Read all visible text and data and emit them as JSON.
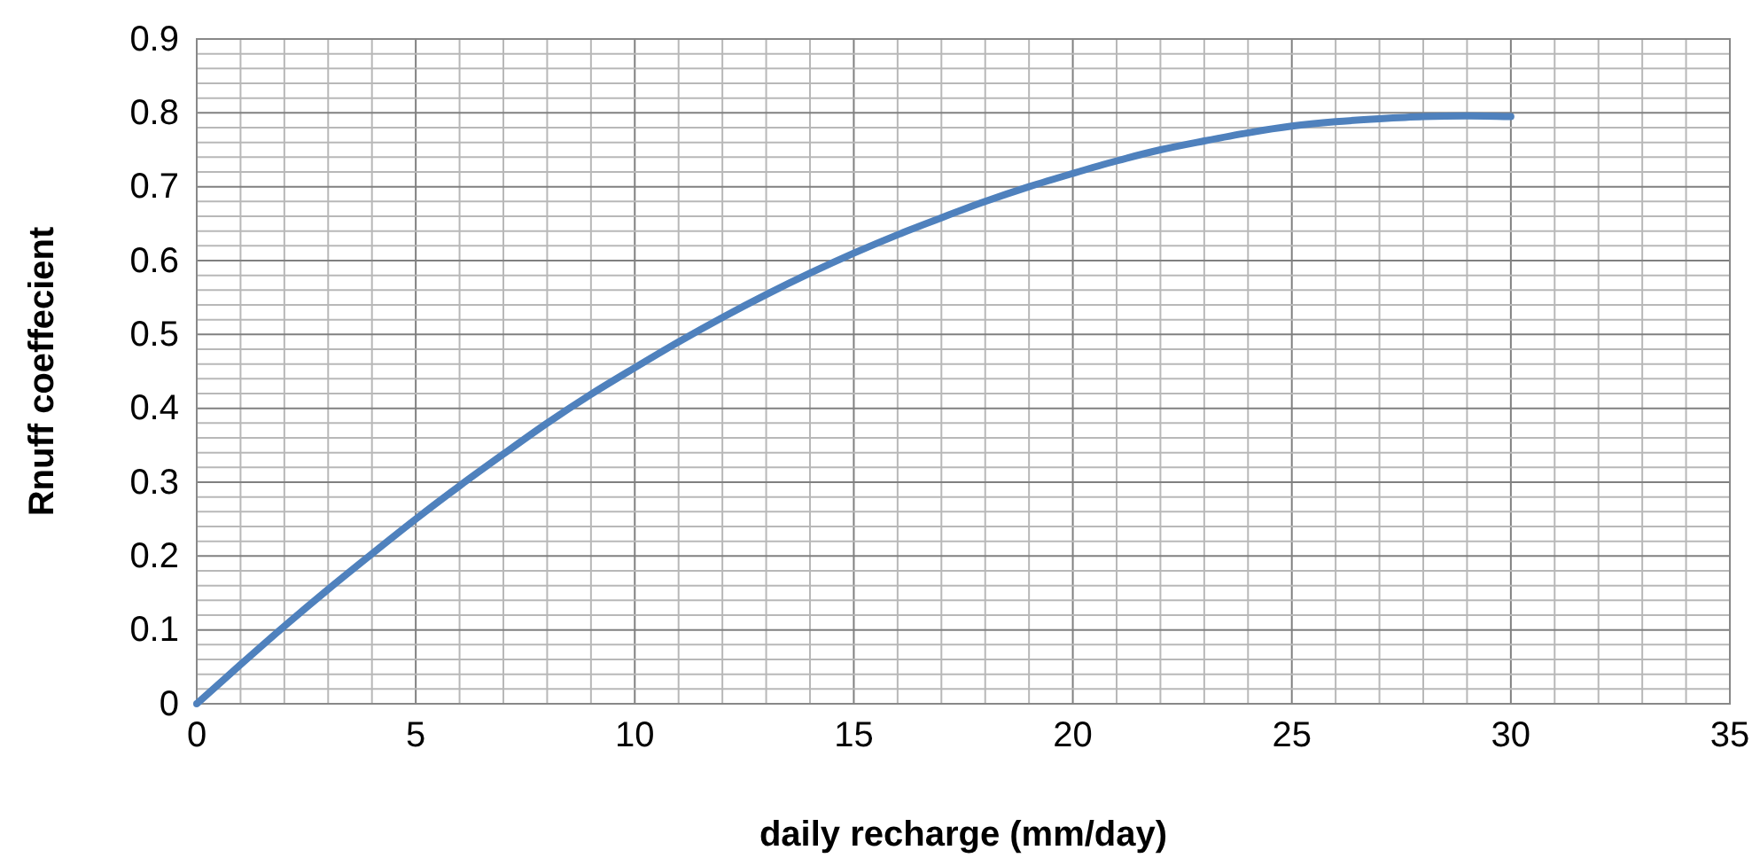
{
  "chart_data": {
    "type": "line",
    "xlabel": "daily recharge (mm/day)",
    "ylabel": "Rnuff coeffecient",
    "x": [
      0,
      1,
      2,
      3,
      4,
      5,
      6,
      7,
      8,
      9,
      10,
      11,
      12,
      13,
      14,
      15,
      16,
      17,
      18,
      19,
      20,
      21,
      22,
      23,
      24,
      25,
      26,
      27,
      28,
      29,
      30
    ],
    "series": [
      {
        "color": "#4f81bd",
        "values": [
          0,
          0.053,
          0.105,
          0.155,
          0.203,
          0.25,
          0.295,
          0.338,
          0.38,
          0.419,
          0.455,
          0.49,
          0.523,
          0.554,
          0.583,
          0.61,
          0.635,
          0.658,
          0.68,
          0.7,
          0.718,
          0.735,
          0.75,
          0.762,
          0.773,
          0.782,
          0.788,
          0.792,
          0.795,
          0.796,
          0.795
        ]
      }
    ],
    "xlim": [
      0,
      35
    ],
    "ylim": [
      0,
      0.9
    ],
    "xticks": [
      0,
      {
        "value": 1,
        "label": null
      },
      {
        "value": 2,
        "label": null
      },
      {
        "value": 3,
        "label": null
      },
      {
        "value": 4,
        "label": null
      },
      5,
      {
        "value": 6,
        "label": null
      },
      {
        "value": 7,
        "label": null
      },
      {
        "value": 8,
        "label": null
      },
      {
        "value": 9,
        "label": null
      },
      10,
      {
        "value": 11,
        "label": null
      },
      {
        "value": 12,
        "label": null
      },
      {
        "value": 13,
        "label": null
      },
      {
        "value": 14,
        "label": null
      },
      15,
      {
        "value": 16,
        "label": null
      },
      {
        "value": 17,
        "label": null
      },
      {
        "value": 18,
        "label": null
      },
      {
        "value": 19,
        "label": null
      },
      20,
      {
        "value": 21,
        "label": null
      },
      {
        "value": 22,
        "label": null
      },
      {
        "value": 23,
        "label": null
      },
      {
        "value": 24,
        "label": null
      },
      25,
      {
        "value": 26,
        "label": null
      },
      {
        "value": 27,
        "label": null
      },
      {
        "value": 28,
        "label": null
      },
      {
        "value": 29,
        "label": null
      },
      30,
      {
        "value": 31,
        "label": null
      },
      {
        "value": 32,
        "label": null
      },
      {
        "value": 33,
        "label": null
      },
      {
        "value": 34,
        "label": null
      },
      35
    ],
    "yticks": [
      0,
      {
        "value": 0.02,
        "label": null
      },
      {
        "value": 0.04,
        "label": null
      },
      {
        "value": 0.06,
        "label": null
      },
      {
        "value": 0.08,
        "label": null
      },
      0.1,
      {
        "value": 0.12,
        "label": null
      },
      {
        "value": 0.14,
        "label": null
      },
      {
        "value": 0.16,
        "label": null
      },
      {
        "value": 0.18,
        "label": null
      },
      0.2,
      {
        "value": 0.22,
        "label": null
      },
      {
        "value": 0.24,
        "label": null
      },
      {
        "value": 0.26,
        "label": null
      },
      {
        "value": 0.28,
        "label": null
      },
      0.3,
      {
        "value": 0.32,
        "label": null
      },
      {
        "value": 0.34,
        "label": null
      },
      {
        "value": 0.36,
        "label": null
      },
      {
        "value": 0.38,
        "label": null
      },
      0.4,
      {
        "value": 0.42,
        "label": null
      },
      {
        "value": 0.44,
        "label": null
      },
      {
        "value": 0.46,
        "label": null
      },
      {
        "value": 0.48,
        "label": null
      },
      0.5,
      {
        "value": 0.52,
        "label": null
      },
      {
        "value": 0.54,
        "label": null
      },
      {
        "value": 0.56,
        "label": null
      },
      {
        "value": 0.58,
        "label": null
      },
      0.6,
      {
        "value": 0.62,
        "label": null
      },
      {
        "value": 0.64,
        "label": null
      },
      {
        "value": 0.66,
        "label": null
      },
      {
        "value": 0.68,
        "label": null
      },
      0.7,
      {
        "value": 0.72,
        "label": null
      },
      {
        "value": 0.74,
        "label": null
      },
      {
        "value": 0.76,
        "label": null
      },
      {
        "value": 0.78,
        "label": null
      },
      0.8,
      {
        "value": 0.82,
        "label": null
      },
      {
        "value": 0.84,
        "label": null
      },
      {
        "value": 0.86,
        "label": null
      },
      {
        "value": 0.88,
        "label": null
      },
      0.9
    ],
    "grid": true,
    "marker": "none",
    "line_style": "solid"
  }
}
